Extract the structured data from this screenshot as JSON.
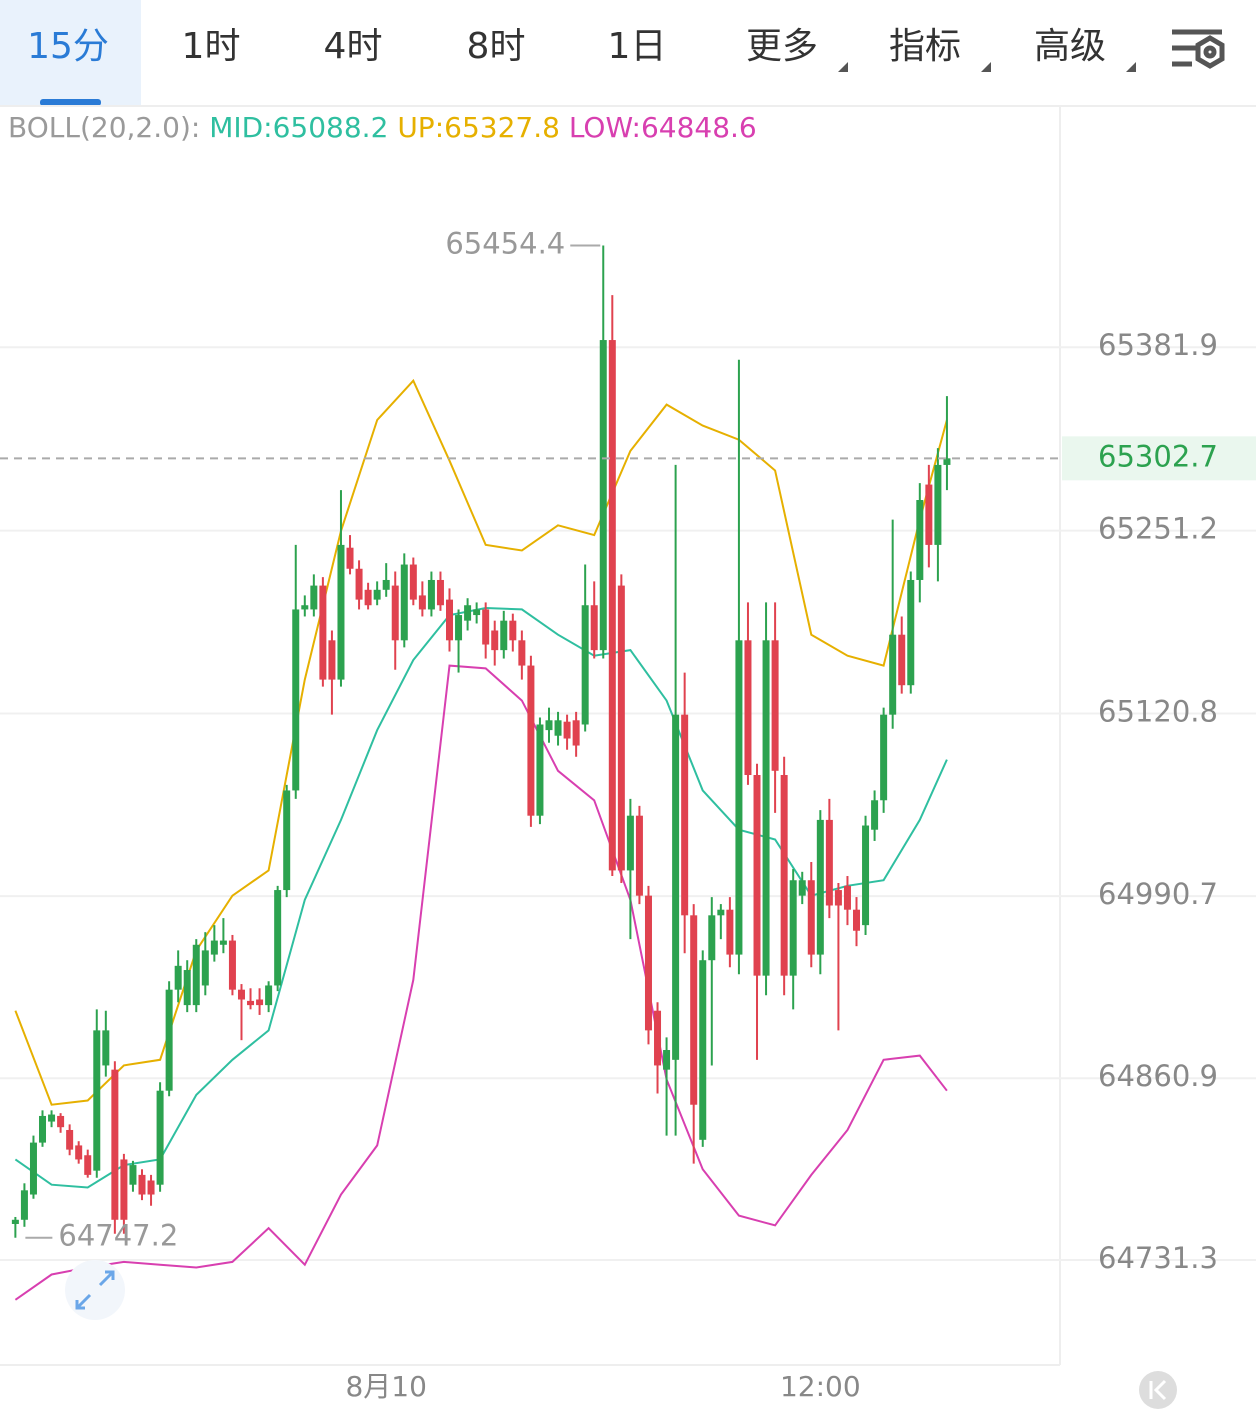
{
  "tabs": {
    "items": [
      "15分",
      "1时",
      "4时",
      "8时",
      "1日",
      "更多",
      "指标",
      "高级"
    ],
    "active": 0
  },
  "chart_data": {
    "type": "candlestick",
    "indicator": "BOLL(20,2.0):",
    "up_color": "#2ca24f",
    "down_color": "#e0424f",
    "ylim": [
      64656.5,
      65553.1
    ],
    "yticks": [
      64731.3,
      64860.9,
      64990.7,
      65120.8,
      65251.2,
      65381.9
    ],
    "xlim": [
      -1.7,
      115.5
    ],
    "xticks": [
      {
        "value": 41,
        "label": "8月10"
      },
      {
        "value": 89,
        "label": "12:00"
      }
    ],
    "grid": true,
    "ohlc": [
      [
        64757,
        64762,
        64747.2,
        64760
      ],
      [
        64760,
        64786,
        64755,
        64781
      ],
      [
        64778,
        64820,
        64775,
        64815
      ],
      [
        64815,
        64838,
        64812,
        64834
      ],
      [
        64830,
        64838,
        64826,
        64835
      ],
      [
        64834,
        64836,
        64822,
        64826
      ],
      [
        64824,
        64828,
        64806,
        64810
      ],
      [
        64813,
        64816,
        64800,
        64803
      ],
      [
        64806,
        64810,
        64790,
        64792
      ],
      [
        64795,
        64910,
        64790,
        64895
      ],
      [
        64870,
        64909,
        64862,
        64895
      ],
      [
        64867,
        64873,
        64750,
        64760
      ],
      [
        64803,
        64807,
        64750,
        64760
      ],
      [
        64785,
        64802,
        64780,
        64799
      ],
      [
        64792,
        64796,
        64774,
        64778
      ],
      [
        64788,
        64792,
        64770,
        64778
      ],
      [
        64785,
        64858,
        64780,
        64852
      ],
      [
        64852,
        64930,
        64848,
        64924
      ],
      [
        64924,
        64952,
        64915,
        64941
      ],
      [
        64913,
        64945,
        64908,
        64938
      ],
      [
        64913,
        64960,
        64908,
        64956
      ],
      [
        64927,
        64965,
        64920,
        64952
      ],
      [
        64949,
        64970,
        64944,
        64959
      ],
      [
        64956,
        64975,
        64950,
        64959
      ],
      [
        64959,
        64963,
        64920,
        64924
      ],
      [
        64924,
        64928,
        64888,
        64917
      ],
      [
        64916,
        64925,
        64910,
        64913
      ],
      [
        64917,
        64925,
        64906,
        64913
      ],
      [
        64913,
        64930,
        64908,
        64927
      ],
      [
        64927,
        64998,
        64923,
        64995
      ],
      [
        64995,
        65070,
        64990,
        65066
      ],
      [
        65066,
        65241,
        65060,
        65195
      ],
      [
        65195,
        65205,
        65190,
        65198
      ],
      [
        65195,
        65220,
        65190,
        65212
      ],
      [
        65212,
        65218,
        65140,
        65145
      ],
      [
        65173,
        65180,
        65120,
        65145
      ],
      [
        65145,
        65280,
        65140,
        65241
      ],
      [
        65239,
        65248,
        65220,
        65224
      ],
      [
        65224,
        65230,
        65195,
        65202
      ],
      [
        65209,
        65214,
        65195,
        65198
      ],
      [
        65202,
        65215,
        65198,
        65209
      ],
      [
        65209,
        65228,
        65204,
        65216
      ],
      [
        65212,
        65222,
        65152,
        65173
      ],
      [
        65173,
        65235,
        65168,
        65227
      ],
      [
        65227,
        65232,
        65198,
        65202
      ],
      [
        65205,
        65215,
        65190,
        65195
      ],
      [
        65195,
        65222,
        65190,
        65216
      ],
      [
        65216,
        65222,
        65194,
        65198
      ],
      [
        65202,
        65210,
        65165,
        65173
      ],
      [
        65173,
        65195,
        65150,
        65191
      ],
      [
        65187,
        65203,
        65180,
        65198
      ],
      [
        65191,
        65200,
        65185,
        65195
      ],
      [
        65195,
        65200,
        65160,
        65170
      ],
      [
        65180,
        65187,
        65155,
        65166
      ],
      [
        65166,
        65194,
        65160,
        65187
      ],
      [
        65187,
        65192,
        65165,
        65173
      ],
      [
        65173,
        65180,
        65145,
        65155
      ],
      [
        65155,
        65162,
        65040,
        65048
      ],
      [
        65048,
        65118,
        65042,
        65113
      ],
      [
        65109,
        65125,
        65100,
        65116
      ],
      [
        65105,
        65122,
        65098,
        65116
      ],
      [
        65115,
        65120,
        65095,
        65103
      ],
      [
        65116,
        65122,
        65090,
        65098
      ],
      [
        65113,
        65227,
        65108,
        65198
      ],
      [
        65198,
        65215,
        65160,
        65166
      ],
      [
        65166,
        65454.4,
        65160,
        65387
      ],
      [
        65387,
        65419,
        65005,
        65009
      ],
      [
        65212,
        65220,
        65000,
        65009
      ],
      [
        65009,
        65060,
        64960,
        65048
      ],
      [
        65048,
        65055,
        64985,
        64991
      ],
      [
        64991,
        64998,
        64885,
        64895
      ],
      [
        64909,
        64915,
        64850,
        64870
      ],
      [
        64867,
        64890,
        64820,
        64881
      ],
      [
        64874,
        65298,
        64820,
        65120
      ],
      [
        65120,
        65150,
        64950,
        64977
      ],
      [
        64977,
        64985,
        64800,
        64842
      ],
      [
        64817,
        64952,
        64812,
        64945
      ],
      [
        64945,
        64990,
        64870,
        64977
      ],
      [
        64977,
        64985,
        64960,
        64981
      ],
      [
        64981,
        64990,
        64940,
        64949
      ],
      [
        64949,
        65373,
        64935,
        65173
      ],
      [
        65173,
        65200,
        65070,
        65077
      ],
      [
        65077,
        65085,
        64874,
        64934
      ],
      [
        64934,
        65200,
        64920,
        65173
      ],
      [
        65173,
        65200,
        65050,
        65080
      ],
      [
        65077,
        65090,
        64920,
        64934
      ],
      [
        64934,
        65010,
        64910,
        65002
      ],
      [
        64991,
        65008,
        64985,
        65002
      ],
      [
        65002,
        65015,
        64940,
        64949
      ],
      [
        64949,
        65052,
        64935,
        65045
      ],
      [
        65045,
        65060,
        64975,
        64984
      ],
      [
        64995,
        65000,
        64895,
        64984
      ],
      [
        64998,
        65005,
        64970,
        64981
      ],
      [
        64981,
        64990,
        64955,
        64966
      ],
      [
        64970,
        65048,
        64963,
        65041
      ],
      [
        65038,
        65066,
        65030,
        65059
      ],
      [
        65059,
        65125,
        65050,
        65120
      ],
      [
        65120,
        65259,
        65110,
        65177
      ],
      [
        65177,
        65190,
        65135,
        65141
      ],
      [
        65141,
        65222,
        65135,
        65216
      ],
      [
        65216,
        65285,
        65200,
        65273
      ],
      [
        65284,
        65298,
        65225,
        65241
      ],
      [
        65241,
        65310,
        65215,
        65298
      ],
      [
        65298,
        65347,
        65280,
        65302.7
      ]
    ],
    "series": [
      {
        "name": "MID:65088.2",
        "color": "#2fbfa0",
        "x": [
          0,
          4,
          8,
          12,
          16,
          20,
          24,
          28,
          32,
          36,
          40,
          44,
          48,
          52,
          56,
          60,
          64,
          68,
          72,
          76,
          80,
          84,
          88,
          92,
          96,
          100,
          103
        ],
        "values": [
          64803,
          64785,
          64783,
          64799,
          64803,
          64849,
          64874,
          64895,
          64988,
          65045,
          65109,
          65159,
          65191,
          65196,
          65195,
          65177,
          65162,
          65166,
          65130,
          65066,
          65038,
          65031,
          64991,
          64998,
          65002,
          65045,
          65088
        ]
      },
      {
        "name": "UP:65327.8",
        "color": "#e6b000",
        "x": [
          0,
          4,
          8,
          12,
          16,
          20,
          24,
          28,
          32,
          36,
          40,
          44,
          48,
          52,
          56,
          60,
          64,
          68,
          72,
          76,
          80,
          84,
          88,
          92,
          96,
          100,
          103
        ],
        "values": [
          64909,
          64842,
          64845,
          64870,
          64874,
          64952,
          64991,
          65009,
          65145,
          65251,
          65330,
          65358,
          65301,
          65241,
          65237,
          65255,
          65248,
          65308,
          65341,
          65326,
          65316,
          65294,
          65177,
          65162,
          65155,
          65259,
          65330
        ]
      },
      {
        "name": "LOW:64848.6",
        "color": "#d83fb0",
        "x": [
          0,
          4,
          8,
          12,
          16,
          20,
          24,
          28,
          32,
          36,
          40,
          44,
          48,
          52,
          56,
          60,
          64,
          68,
          72,
          76,
          80,
          84,
          88,
          92,
          96,
          100,
          103
        ],
        "values": [
          64703,
          64721,
          64726,
          64730,
          64728,
          64726,
          64730,
          64754,
          64728,
          64778,
          64813,
          64931,
          65155,
          65153,
          65130,
          65080,
          65059,
          64988,
          64860,
          64796,
          64763,
          64756,
          64792,
          64824,
          64874,
          64877,
          64852
        ]
      }
    ]
  }
}
